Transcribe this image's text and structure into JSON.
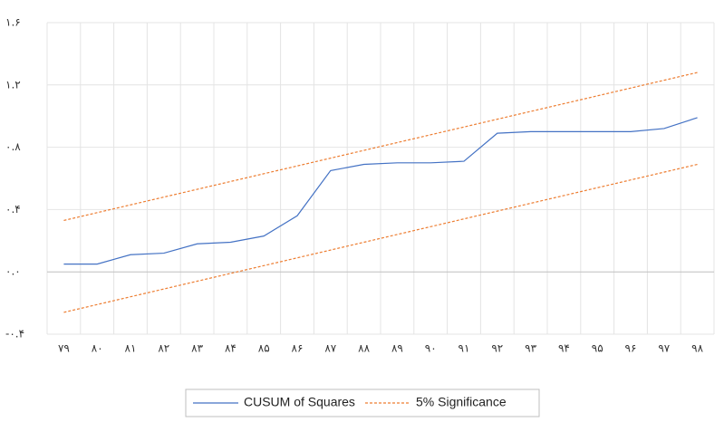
{
  "chart_data": {
    "type": "line",
    "categories": [
      "۷۹",
      "۸۰",
      "۸۱",
      "۸۲",
      "۸۳",
      "۸۴",
      "۸۵",
      "۸۶",
      "۸۷",
      "۸۸",
      "۸۹",
      "۹۰",
      "۹۱",
      "۹۲",
      "۹۳",
      "۹۴",
      "۹۵",
      "۹۶",
      "۹۷",
      "۹۸"
    ],
    "series": [
      {
        "name": "CUSUM of Squares",
        "color": "#4472c4",
        "dash": false,
        "values": [
          0.05,
          0.05,
          0.11,
          0.12,
          0.18,
          0.19,
          0.23,
          0.36,
          0.65,
          0.69,
          0.7,
          0.7,
          0.71,
          0.89,
          0.9,
          0.9,
          0.9,
          0.9,
          0.92,
          0.99
        ]
      },
      {
        "name": "5% Significance",
        "color": "#ed7d31",
        "dash": true,
        "values": [
          0.33,
          0.38,
          0.43,
          0.48,
          0.53,
          0.58,
          0.63,
          0.68,
          0.73,
          0.78,
          0.83,
          0.88,
          0.93,
          0.98,
          1.03,
          1.08,
          1.13,
          1.18,
          1.23,
          1.28
        ]
      },
      {
        "color": "#ed7d31",
        "dash": true,
        "values": [
          -0.26,
          -0.21,
          -0.16,
          -0.11,
          -0.06,
          -0.01,
          0.04,
          0.09,
          0.14,
          0.19,
          0.24,
          0.29,
          0.34,
          0.39,
          0.44,
          0.49,
          0.54,
          0.59,
          0.64,
          0.69
        ]
      }
    ],
    "ylim": [
      -0.4,
      1.6
    ],
    "yticks": [
      {
        "value": -0.4,
        "label": "-۰.۴"
      },
      {
        "value": 0,
        "label": "۰.۰"
      },
      {
        "value": 0.4,
        "label": "۰.۴"
      },
      {
        "value": 0.8,
        "label": "۰.۸"
      },
      {
        "value": 1.2,
        "label": "۱.۲"
      },
      {
        "value": 1.6,
        "label": "۱.۶"
      }
    ],
    "grid": true
  }
}
